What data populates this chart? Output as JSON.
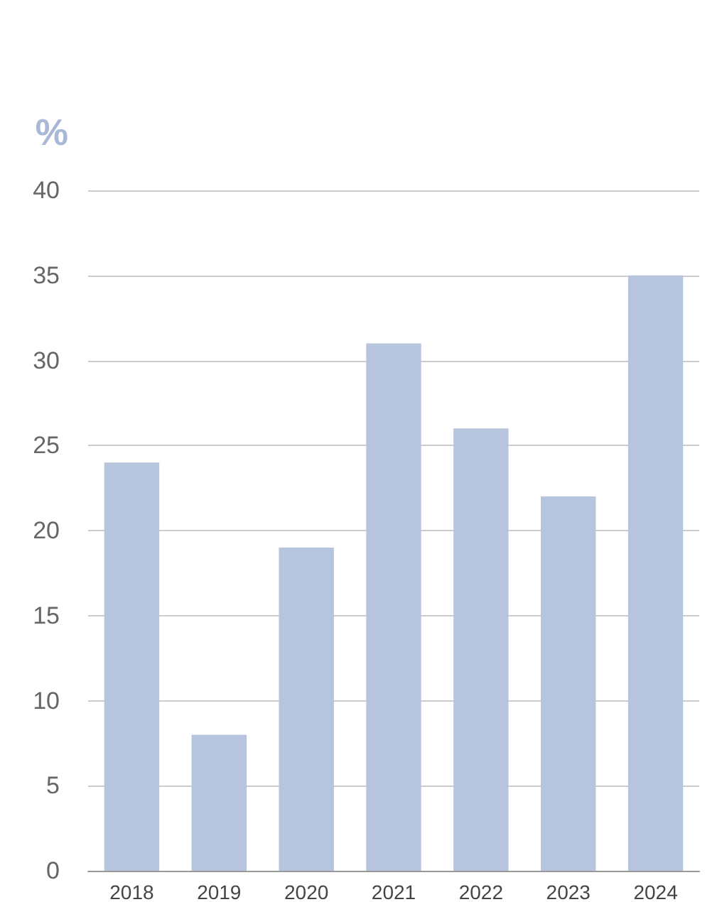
{
  "chart_data": {
    "type": "bar",
    "ylabel": "%",
    "categories": [
      "2018",
      "2019",
      "2020",
      "2021",
      "2022",
      "2023",
      "2024"
    ],
    "values": [
      24,
      8,
      19,
      31,
      26,
      22,
      35
    ],
    "color": "#b7c4de",
    "ylim": [
      0,
      40
    ],
    "yticks": [
      0,
      5,
      10,
      15,
      20,
      25,
      30,
      35,
      40
    ],
    "grid": "y"
  }
}
